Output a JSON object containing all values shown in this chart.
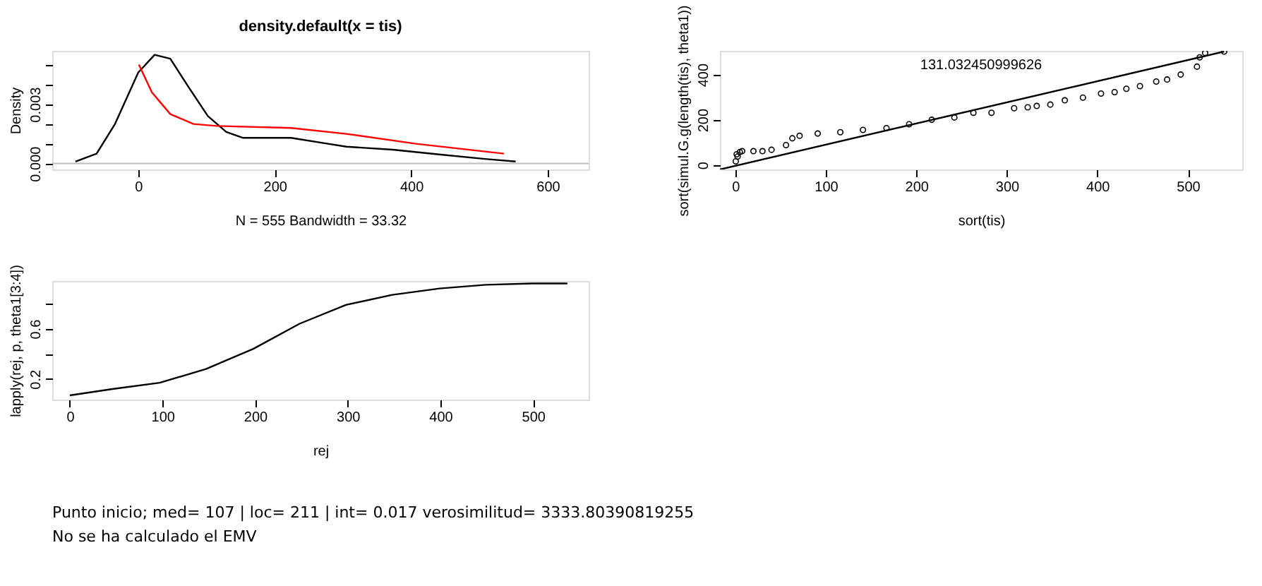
{
  "chart_data": [
    {
      "type": "line",
      "title": "density.default(x = tis)",
      "xlabel": "N = 555   Bandwidth = 33.32",
      "ylabel": "Density",
      "xlim": [
        -126,
        660
      ],
      "ylim": [
        -0.0003,
        0.0057
      ],
      "xticks": [
        0,
        200,
        400,
        600
      ],
      "yticks": [
        {
          "value": 0,
          "label": "0.000"
        },
        {
          "value": 0.001,
          "label": null
        },
        {
          "value": 0.002,
          "label": null
        },
        0.003,
        {
          "value": 0.004,
          "label": null
        },
        {
          "value": 0.005,
          "label": null
        }
      ],
      "grid": false,
      "line_style": "solid",
      "ref_lines": [
        {
          "axis": "y",
          "value": 0,
          "color": "#bebebe"
        }
      ],
      "series": [
        {
          "color": "#000000",
          "x": [
            -92,
            -61,
            -34,
            0,
            24,
            47,
            75,
            102,
            129,
            153,
            224,
            278,
            305,
            373,
            441,
            508,
            553
          ],
          "values": [
            0.0001,
            0.0005,
            0.002,
            0.0046,
            0.0055,
            0.0053,
            0.0038,
            0.0024,
            0.0016,
            0.0013,
            0.0013,
            0.001,
            0.00085,
            0.0007,
            0.00046,
            0.00023,
            0.0001
          ]
        },
        {
          "color": "#ff0000",
          "x": [
            1,
            20,
            47,
            81,
            115,
            224,
            305,
            407,
            536
          ],
          "values": [
            0.005,
            0.0036,
            0.0025,
            0.002,
            0.0019,
            0.0018,
            0.0015,
            0.001,
            0.0005
          ]
        }
      ]
    },
    {
      "type": "scatter",
      "xlabel": "sort(tis)",
      "ylabel": "sort(simul.G.g(length(tis), theta1))",
      "xlim": [
        -17,
        560
      ],
      "ylim": [
        -20,
        505
      ],
      "xticks": [
        0,
        100,
        200,
        300,
        400,
        500
      ],
      "yticks": [
        0,
        200,
        400
      ],
      "grid": false,
      "annotations": [
        "131.032450999626"
      ],
      "series": [
        {
          "color": "#000000",
          "x": [
            0.5,
            1.5,
            2.5,
            5,
            7.6,
            20,
            30,
            40,
            56,
            63,
            71,
            91,
            116,
            141,
            167,
            192,
            217,
            242,
            263,
            283,
            308,
            323,
            333,
            348,
            364,
            384,
            404,
            419,
            432,
            447,
            465,
            477,
            492,
            510,
            513,
            519,
            540
          ],
          "values": [
            16,
            47,
            37,
            57,
            61,
            61,
            61,
            67,
            88,
            118,
            129,
            139,
            145,
            155,
            163,
            180,
            200,
            210,
            231,
            231,
            251,
            255,
            261,
            267,
            286,
            298,
            316,
            322,
            337,
            349,
            369,
            378,
            400,
            435,
            476,
            496,
            502
          ]
        },
        {
          "type": "line",
          "color": "#000000",
          "x": [
            -17,
            540
          ],
          "values": [
            -20,
            502
          ]
        }
      ]
    },
    {
      "type": "line",
      "xlabel": "rej",
      "ylabel": "lapply(rej, p, theta1[3:4])",
      "xlim": [
        -19,
        560
      ],
      "ylim": [
        0.036,
        0.98
      ],
      "xticks": [
        0,
        100,
        200,
        300,
        400,
        500
      ],
      "yticks": [
        0.2,
        {
          "value": 0.4,
          "label": null
        },
        0.6,
        {
          "value": 0.8,
          "label": null
        }
      ],
      "grid": false,
      "line_style": "solid",
      "annotations": [
        "Punto inicio; med= 107 | loc= 211 | int= 0.017 verosimilitud= 3333.80390819255",
        "No se ha calculado el EMV"
      ],
      "series": [
        {
          "color": "#000000",
          "x": [
            0,
            46,
            97,
            147,
            198,
            248,
            298,
            348,
            399,
            449,
            499,
            537
          ],
          "values": [
            0.07,
            0.12,
            0.17,
            0.28,
            0.44,
            0.64,
            0.79,
            0.87,
            0.92,
            0.95,
            0.96,
            0.96
          ]
        }
      ]
    }
  ]
}
